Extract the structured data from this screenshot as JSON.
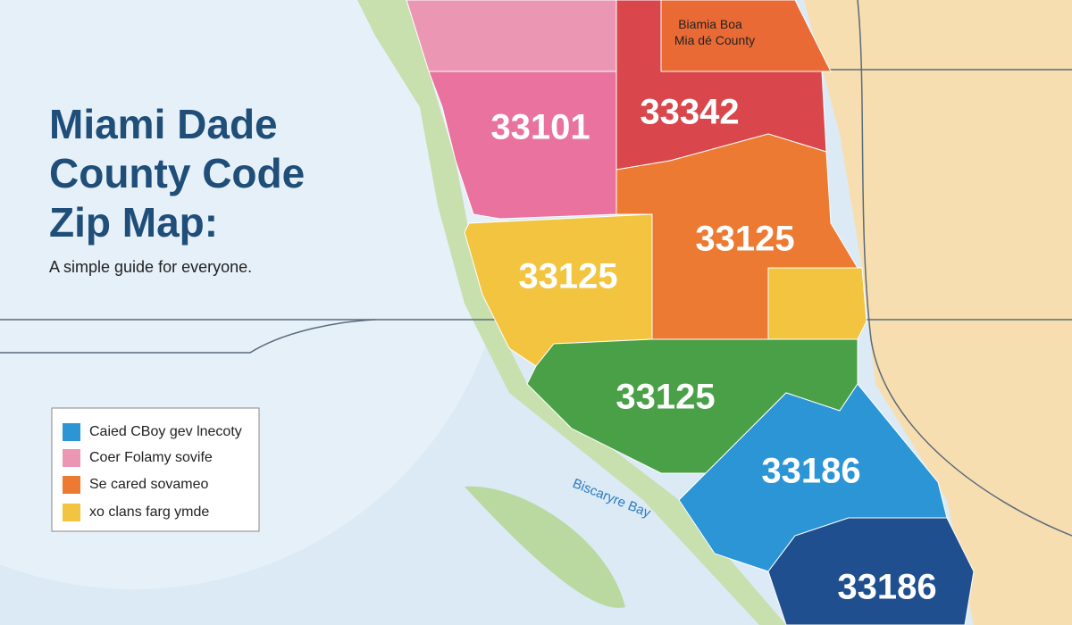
{
  "title": [
    "Miami Dade",
    "County Code",
    "Zip Map:"
  ],
  "subtitle": "A simple guide for everyone.",
  "map_label": [
    "Biamia Boa",
    "Mia dé County"
  ],
  "zip_labels": [
    "33101",
    "33342",
    "33125",
    "33125",
    "33125",
    "33186",
    "33186"
  ],
  "legend": [
    "Caied CBoy gev lnecoty",
    "Coer Folamy sovife",
    "Se cared sovameo",
    "xo clans farg ymde"
  ],
  "water_label": "Biscaryre Bay"
}
